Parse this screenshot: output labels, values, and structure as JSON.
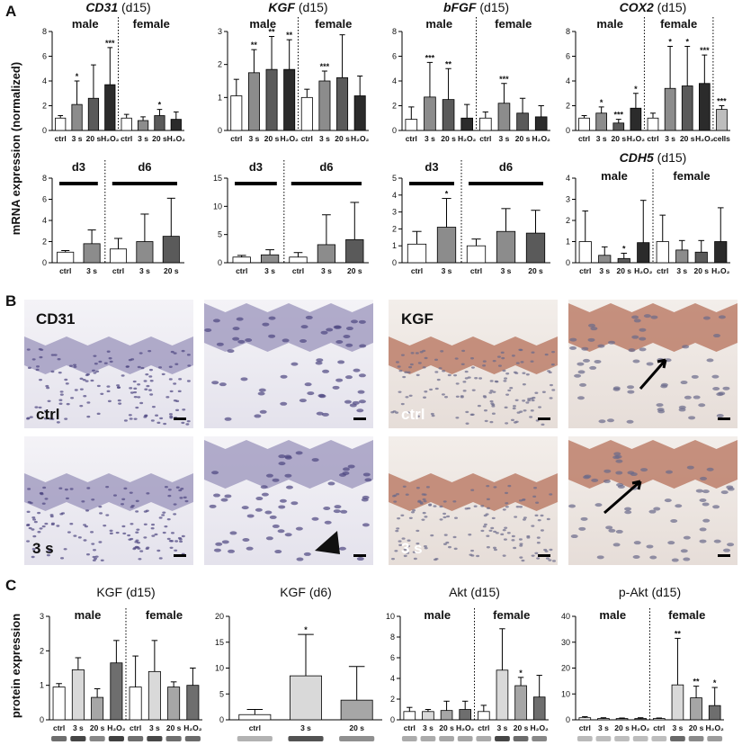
{
  "panel_labels": [
    "A",
    "B",
    "C"
  ],
  "axis_labels": [
    "mRNA expression (normalized)",
    "protein expression"
  ],
  "image_labels": [
    "CD31",
    "ctrl",
    "3 s",
    "KGF",
    "ctrl",
    "3 s"
  ],
  "chart_data": [
    {
      "type": "bar",
      "gene": "CD31",
      "timepoint": "(d15)",
      "ylim": [
        0,
        8
      ],
      "yticks": [
        0,
        2,
        4,
        6,
        8
      ],
      "groups": [
        {
          "label": "male",
          "categories": [
            "ctrl",
            "3 s",
            "20 s",
            "H₂O₂"
          ],
          "values": [
            1.0,
            2.1,
            2.6,
            3.7
          ],
          "errors": [
            0.2,
            1.9,
            2.7,
            3.0
          ],
          "significance": [
            null,
            "*",
            null,
            "***"
          ],
          "colors": [
            "#ffffff",
            "#8c8c8c",
            "#5a5a5a",
            "#2b2b2b"
          ]
        },
        {
          "label": "female",
          "categories": [
            "ctrl",
            "3 s",
            "20 s",
            "H₂O₂"
          ],
          "values": [
            1.0,
            0.8,
            1.2,
            0.9
          ],
          "errors": [
            0.3,
            0.3,
            0.5,
            0.6
          ],
          "significance": [
            null,
            null,
            "*",
            null
          ],
          "colors": [
            "#ffffff",
            "#8c8c8c",
            "#5a5a5a",
            "#2b2b2b"
          ]
        }
      ]
    },
    {
      "type": "bar",
      "gene": "KGF",
      "timepoint": "(d15)",
      "ylim": [
        0,
        3
      ],
      "yticks": [
        0,
        1,
        2,
        3
      ],
      "groups": [
        {
          "label": "male",
          "categories": [
            "ctrl",
            "3 s",
            "20 s",
            "H₂O₂"
          ],
          "values": [
            1.05,
            1.75,
            1.85,
            1.85
          ],
          "errors": [
            0.5,
            0.7,
            1.0,
            0.9
          ],
          "significance": [
            null,
            "**",
            "**",
            "**"
          ],
          "colors": [
            "#ffffff",
            "#8c8c8c",
            "#5a5a5a",
            "#2b2b2b"
          ]
        },
        {
          "label": "female",
          "categories": [
            "ctrl",
            "3 s",
            "20 s",
            "H₂O₂"
          ],
          "values": [
            1.0,
            1.5,
            1.6,
            1.05
          ],
          "errors": [
            0.25,
            0.3,
            1.3,
            0.6
          ],
          "significance": [
            null,
            "***",
            null,
            null
          ],
          "colors": [
            "#ffffff",
            "#8c8c8c",
            "#5a5a5a",
            "#2b2b2b"
          ]
        }
      ]
    },
    {
      "type": "bar",
      "gene": "bFGF",
      "timepoint": "(d15)",
      "ylim": [
        0,
        8
      ],
      "yticks": [
        0,
        2,
        4,
        6,
        8
      ],
      "groups": [
        {
          "label": "male",
          "categories": [
            "ctrl",
            "3 s",
            "20 s",
            "H₂O₂"
          ],
          "values": [
            0.9,
            2.7,
            2.5,
            1.0
          ],
          "errors": [
            1.0,
            2.8,
            2.5,
            1.1
          ],
          "significance": [
            null,
            "***",
            "**",
            null
          ],
          "colors": [
            "#ffffff",
            "#8c8c8c",
            "#5a5a5a",
            "#2b2b2b"
          ]
        },
        {
          "label": "female",
          "categories": [
            "ctrl",
            "3 s",
            "20 s",
            "H₂O₂"
          ],
          "values": [
            1.0,
            2.2,
            1.4,
            1.1
          ],
          "errors": [
            0.5,
            1.6,
            1.2,
            0.9
          ],
          "significance": [
            null,
            "***",
            null,
            null
          ],
          "colors": [
            "#ffffff",
            "#8c8c8c",
            "#5a5a5a",
            "#2b2b2b"
          ]
        }
      ]
    },
    {
      "type": "bar",
      "gene": "COX2",
      "timepoint": "(d15)",
      "ylim": [
        0,
        8
      ],
      "yticks": [
        0,
        2,
        4,
        6,
        8
      ],
      "groups": [
        {
          "label": "male",
          "categories": [
            "ctrl",
            "3 s",
            "20 s",
            "H₂O₂"
          ],
          "values": [
            1.0,
            1.4,
            0.6,
            1.8
          ],
          "errors": [
            0.2,
            0.5,
            0.3,
            1.2
          ],
          "significance": [
            null,
            "*",
            "***",
            "*"
          ],
          "colors": [
            "#ffffff",
            "#8c8c8c",
            "#5a5a5a",
            "#2b2b2b"
          ]
        },
        {
          "label": "female",
          "categories": [
            "ctrl",
            "3 s",
            "20 s",
            "H₂O₂"
          ],
          "values": [
            1.0,
            3.4,
            3.6,
            3.8
          ],
          "errors": [
            0.4,
            3.4,
            3.2,
            2.3
          ],
          "significance": [
            null,
            "*",
            "*",
            "***"
          ],
          "colors": [
            "#ffffff",
            "#8c8c8c",
            "#5a5a5a",
            "#2b2b2b"
          ]
        },
        {
          "label": null,
          "categories": [
            "cells"
          ],
          "values": [
            1.7
          ],
          "errors": [
            0.3
          ],
          "significance": [
            "***"
          ],
          "colors": [
            "#bdbdbd"
          ]
        }
      ]
    },
    {
      "type": "bar",
      "ylim": [
        0,
        8
      ],
      "yticks": [
        0,
        2,
        4,
        6,
        8
      ],
      "group_bar": true,
      "groups": [
        {
          "label": "d3",
          "categories": [
            "ctrl",
            "3 s"
          ],
          "values": [
            1.0,
            1.8
          ],
          "errors": [
            0.15,
            1.3
          ],
          "significance": [
            null,
            null
          ],
          "colors": [
            "#ffffff",
            "#8c8c8c"
          ]
        },
        {
          "label": "d6",
          "categories": [
            "ctrl",
            "3 s",
            "20 s"
          ],
          "values": [
            1.3,
            2.0,
            2.5
          ],
          "errors": [
            1.0,
            2.6,
            3.6
          ],
          "significance": [
            null,
            null,
            null
          ],
          "colors": [
            "#ffffff",
            "#8c8c8c",
            "#5a5a5a"
          ]
        }
      ]
    },
    {
      "type": "bar",
      "ylim": [
        0,
        15
      ],
      "yticks": [
        0,
        5,
        10,
        15
      ],
      "group_bar": true,
      "groups": [
        {
          "label": "d3",
          "categories": [
            "ctrl",
            "3 s"
          ],
          "values": [
            1.0,
            1.4
          ],
          "errors": [
            0.3,
            0.9
          ],
          "significance": [
            null,
            null
          ],
          "colors": [
            "#ffffff",
            "#8c8c8c"
          ]
        },
        {
          "label": "d6",
          "categories": [
            "ctrl",
            "3 s",
            "20 s"
          ],
          "values": [
            1.0,
            3.2,
            4.1
          ],
          "errors": [
            0.8,
            5.3,
            6.6
          ],
          "significance": [
            null,
            null,
            null
          ],
          "colors": [
            "#ffffff",
            "#8c8c8c",
            "#5a5a5a"
          ]
        }
      ]
    },
    {
      "type": "bar",
      "ylim": [
        0,
        5
      ],
      "yticks": [
        0,
        1,
        2,
        3,
        4,
        5
      ],
      "group_bar": true,
      "groups": [
        {
          "label": "d3",
          "categories": [
            "ctrl",
            "3 s"
          ],
          "values": [
            1.1,
            2.1
          ],
          "errors": [
            0.75,
            1.7
          ],
          "significance": [
            null,
            "*"
          ],
          "colors": [
            "#ffffff",
            "#8c8c8c"
          ]
        },
        {
          "label": "d6",
          "categories": [
            "ctrl",
            "3 s",
            "20 s"
          ],
          "values": [
            1.0,
            1.85,
            1.75
          ],
          "errors": [
            0.4,
            1.35,
            1.35
          ],
          "significance": [
            null,
            null,
            null
          ],
          "colors": [
            "#ffffff",
            "#8c8c8c",
            "#5a5a5a"
          ]
        }
      ]
    },
    {
      "type": "bar",
      "gene": "CDH5",
      "timepoint": "(d15)",
      "ylim": [
        0,
        4
      ],
      "yticks": [
        0,
        1,
        2,
        3,
        4
      ],
      "groups": [
        {
          "label": "male",
          "categories": [
            "ctrl",
            "3 s",
            "20 s",
            "H₂O₂"
          ],
          "values": [
            1.0,
            0.35,
            0.2,
            0.95
          ],
          "errors": [
            1.45,
            0.4,
            0.25,
            2.0
          ],
          "significance": [
            null,
            null,
            "*",
            null
          ],
          "colors": [
            "#ffffff",
            "#8c8c8c",
            "#5a5a5a",
            "#2b2b2b"
          ]
        },
        {
          "label": "female",
          "categories": [
            "ctrl",
            "3 s",
            "20 s",
            "H₂O₂"
          ],
          "values": [
            1.0,
            0.6,
            0.5,
            1.0
          ],
          "errors": [
            1.25,
            0.45,
            0.55,
            1.6
          ],
          "significance": [
            null,
            null,
            null,
            null
          ],
          "colors": [
            "#ffffff",
            "#8c8c8c",
            "#5a5a5a",
            "#2b2b2b"
          ]
        }
      ]
    },
    {
      "type": "bar",
      "title": "KGF (d15)",
      "ylim": [
        0,
        3
      ],
      "yticks": [
        0,
        1,
        2,
        3
      ],
      "groups": [
        {
          "label": "male",
          "categories": [
            "ctrl",
            "3 s",
            "20 s",
            "H₂O₂"
          ],
          "values": [
            0.95,
            1.45,
            0.65,
            1.65
          ],
          "errors": [
            0.1,
            0.35,
            0.25,
            0.65
          ],
          "significance": [
            null,
            null,
            null,
            null
          ],
          "colors": [
            "#ffffff",
            "#d9d9d9",
            "#a6a6a6",
            "#6e6e6e"
          ]
        },
        {
          "label": "female",
          "categories": [
            "ctrl",
            "3 s",
            "20 s",
            "H₂O₂"
          ],
          "values": [
            0.95,
            1.4,
            0.95,
            1.0
          ],
          "errors": [
            0.9,
            0.9,
            0.15,
            0.5
          ],
          "significance": [
            null,
            null,
            null,
            null
          ],
          "colors": [
            "#ffffff",
            "#d9d9d9",
            "#a6a6a6",
            "#6e6e6e"
          ]
        }
      ]
    },
    {
      "type": "bar",
      "title": "KGF (d6)",
      "ylim": [
        0,
        20
      ],
      "yticks": [
        0,
        5,
        10,
        15,
        20
      ],
      "groups": [
        {
          "label": null,
          "categories": [
            "ctrl",
            "3 s",
            "20 s"
          ],
          "values": [
            1.0,
            8.5,
            3.8
          ],
          "errors": [
            1.0,
            8.0,
            6.5
          ],
          "significance": [
            null,
            "*",
            null
          ],
          "colors": [
            "#ffffff",
            "#d9d9d9",
            "#a6a6a6"
          ]
        }
      ]
    },
    {
      "type": "bar",
      "title": "Akt (d15)",
      "ylim": [
        0,
        10
      ],
      "yticks": [
        0,
        2,
        4,
        6,
        8,
        10
      ],
      "groups": [
        {
          "label": "male",
          "categories": [
            "ctrl",
            "3 s",
            "20 s",
            "H₂O₂"
          ],
          "values": [
            0.8,
            0.8,
            0.9,
            1.0
          ],
          "errors": [
            0.4,
            0.2,
            0.9,
            0.8
          ],
          "significance": [
            null,
            null,
            null,
            null
          ],
          "colors": [
            "#ffffff",
            "#d9d9d9",
            "#a6a6a6",
            "#6e6e6e"
          ]
        },
        {
          "label": "female",
          "categories": [
            "ctrl",
            "3 s",
            "20 s",
            "H₂O₂"
          ],
          "values": [
            0.8,
            4.8,
            3.3,
            2.2
          ],
          "errors": [
            0.6,
            4.0,
            0.8,
            2.1
          ],
          "significance": [
            null,
            null,
            "*",
            null
          ],
          "colors": [
            "#ffffff",
            "#d9d9d9",
            "#a6a6a6",
            "#6e6e6e"
          ]
        }
      ]
    },
    {
      "type": "bar",
      "title": "p-Akt (d15)",
      "ylim": [
        0,
        40
      ],
      "yticks": [
        0,
        10,
        20,
        30,
        40
      ],
      "groups": [
        {
          "label": "male",
          "categories": [
            "ctrl",
            "3 s",
            "20 s",
            "H₂O₂"
          ],
          "values": [
            0.8,
            0.5,
            0.5,
            0.5
          ],
          "errors": [
            0.4,
            0.3,
            0.2,
            0.3
          ],
          "significance": [
            null,
            null,
            null,
            null
          ],
          "colors": [
            "#ffffff",
            "#d9d9d9",
            "#a6a6a6",
            "#6e6e6e"
          ]
        },
        {
          "label": "female",
          "categories": [
            "ctrl",
            "3 s",
            "20 s",
            "H₂O₂"
          ],
          "values": [
            0.5,
            13.5,
            8.5,
            5.5
          ],
          "errors": [
            0.2,
            18,
            4.5,
            7
          ],
          "significance": [
            null,
            "**",
            "**",
            "*"
          ],
          "colors": [
            "#ffffff",
            "#d9d9d9",
            "#a6a6a6",
            "#6e6e6e"
          ]
        }
      ]
    }
  ]
}
